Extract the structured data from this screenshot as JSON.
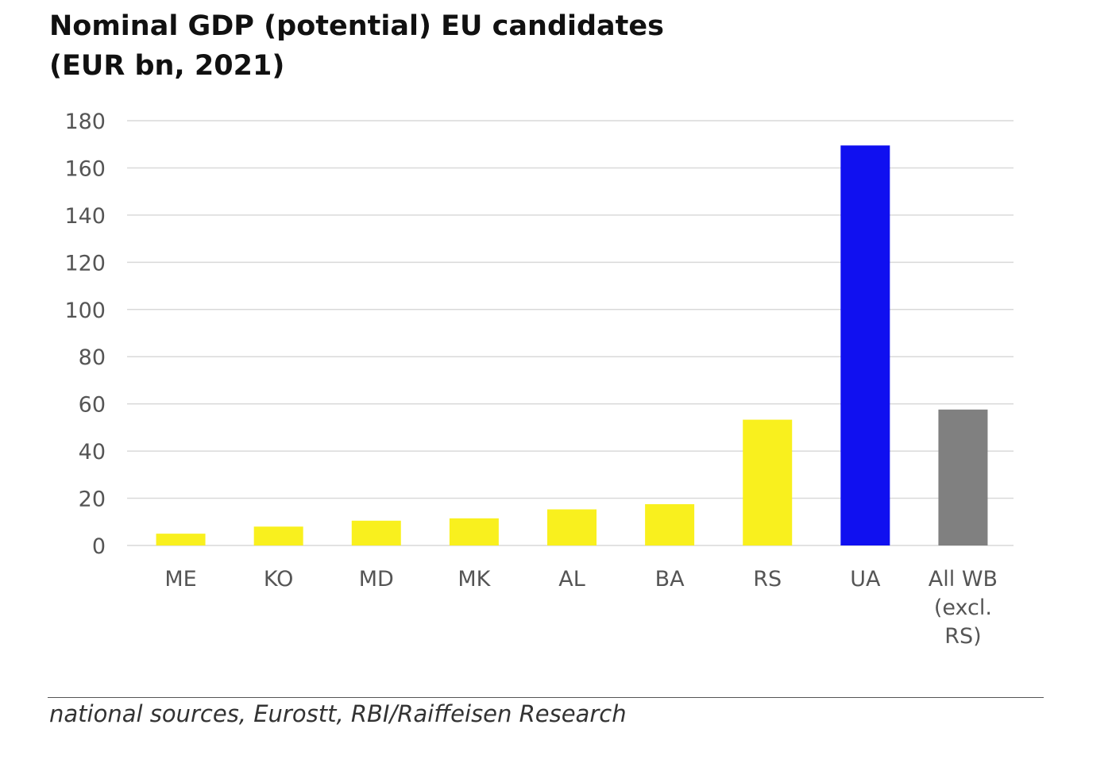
{
  "chart_data": {
    "type": "bar",
    "title": [
      "Nominal GDP (potential) EU candidates",
      "(EUR bn, 2021)"
    ],
    "categories": [
      [
        "ME"
      ],
      [
        "KO"
      ],
      [
        "MD"
      ],
      [
        "MK"
      ],
      [
        "AL"
      ],
      [
        "BA"
      ],
      [
        "RS"
      ],
      [
        "UA"
      ],
      [
        "All WB",
        "(excl.",
        "RS)"
      ]
    ],
    "values": [
      5,
      8,
      10.5,
      11.5,
      15.3,
      17.5,
      53.3,
      169.5,
      57.6
    ],
    "bar_colors": [
      "#f9f01e",
      "#f9f01e",
      "#f9f01e",
      "#f9f01e",
      "#f9f01e",
      "#f9f01e",
      "#f9f01e",
      "#1010f0",
      "#808080"
    ],
    "yticks": [
      0,
      20,
      40,
      60,
      80,
      100,
      120,
      140,
      160,
      180
    ],
    "ylim": [
      0,
      180
    ],
    "grid": true,
    "legend": "none",
    "source": "national sources, Eurostt, RBI/Raiffeisen Research"
  }
}
